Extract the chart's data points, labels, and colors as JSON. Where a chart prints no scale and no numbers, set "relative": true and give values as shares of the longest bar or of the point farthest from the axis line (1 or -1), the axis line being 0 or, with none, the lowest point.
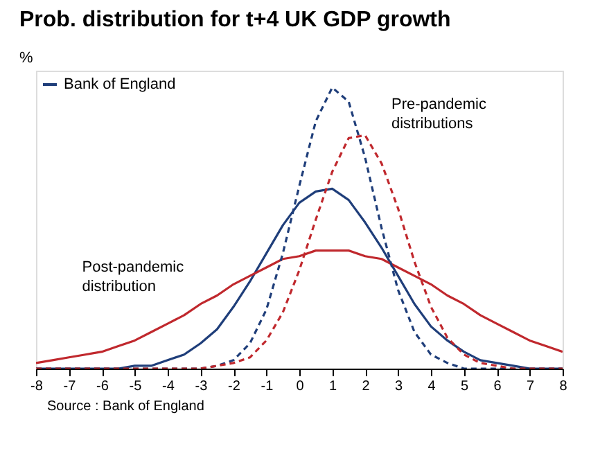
{
  "chart_data": {
    "type": "line",
    "title": "Prob. distribution for t+4 UK GDP growth",
    "ylabel": "%",
    "relative": true,
    "x": [
      -8,
      -7.5,
      -7,
      -6.5,
      -6,
      -5.5,
      -5,
      -4.5,
      -4,
      -3.5,
      -3,
      -2.5,
      -2,
      -1.5,
      -1,
      -0.5,
      0,
      0.5,
      1,
      1.5,
      2,
      2.5,
      3,
      3.5,
      4,
      4.5,
      5,
      5.5,
      6,
      6.5,
      7,
      7.5,
      8
    ],
    "xlim": [
      -8,
      8
    ],
    "xticks": [
      -8,
      -7,
      -6,
      -5,
      -4,
      -3,
      -2,
      -1,
      0,
      1,
      2,
      3,
      4,
      5,
      6,
      7,
      8
    ],
    "series": [
      {
        "name": "Bank of England",
        "color": "#1f3e7a",
        "line_style": "solid",
        "values": [
          0,
          0,
          0,
          0,
          0,
          0,
          0.01,
          0.01,
          0.03,
          0.05,
          0.09,
          0.14,
          0.22,
          0.31,
          0.41,
          0.51,
          0.59,
          0.63,
          0.64,
          0.6,
          0.52,
          0.43,
          0.33,
          0.23,
          0.15,
          0.1,
          0.06,
          0.03,
          0.02,
          0.01,
          0,
          0,
          0
        ]
      },
      {
        "color": "#c0282d",
        "line_style": "solid",
        "values": [
          0.02,
          0.03,
          0.04,
          0.05,
          0.06,
          0.08,
          0.1,
          0.13,
          0.16,
          0.19,
          0.23,
          0.26,
          0.3,
          0.33,
          0.36,
          0.39,
          0.4,
          0.42,
          0.42,
          0.42,
          0.4,
          0.39,
          0.36,
          0.33,
          0.3,
          0.26,
          0.23,
          0.19,
          0.16,
          0.13,
          0.1,
          0.08,
          0.06
        ]
      },
      {
        "color": "#1f3e7a",
        "line_style": "dashed",
        "values": [
          0,
          0,
          0,
          0,
          0,
          0,
          0,
          0,
          0,
          0,
          0,
          0.01,
          0.03,
          0.09,
          0.21,
          0.41,
          0.65,
          0.88,
          1,
          0.95,
          0.75,
          0.5,
          0.28,
          0.13,
          0.05,
          0.02,
          0,
          0,
          0,
          0,
          0,
          0,
          0
        ]
      },
      {
        "color": "#c0282d",
        "line_style": "dashed",
        "values": [
          0,
          0,
          0,
          0,
          0,
          0,
          0,
          0,
          0,
          0,
          0,
          0.01,
          0.02,
          0.04,
          0.1,
          0.2,
          0.35,
          0.53,
          0.7,
          0.82,
          0.83,
          0.73,
          0.57,
          0.38,
          0.22,
          0.11,
          0.05,
          0.02,
          0.01,
          0,
          0,
          0,
          0
        ]
      }
    ],
    "legend": "top left",
    "grid": false,
    "annotations": [
      "Pre-pandemic\ndistributions",
      "Post-pandemic\ndistribution",
      "Source : Bank of England"
    ]
  }
}
